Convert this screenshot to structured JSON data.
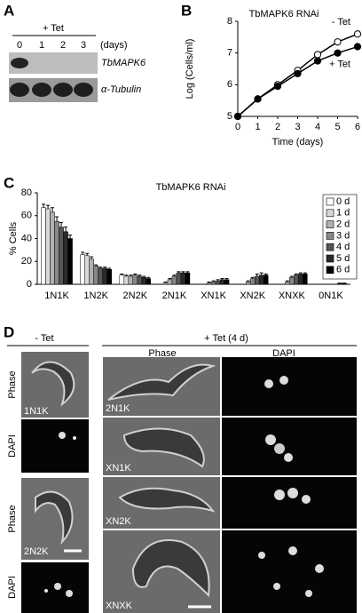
{
  "panel_labels": [
    "A",
    "B",
    "C",
    "D"
  ],
  "blot": {
    "treatment": "+ Tet",
    "lanes": [
      "0",
      "1",
      "2",
      "3"
    ],
    "unit": "(days)",
    "rows": [
      "TbMAPK6",
      "α-Tubulin"
    ]
  },
  "chart_data": [
    {
      "type": "line",
      "title": "TbMAPK6 RNAi",
      "x_label": "Time (days)",
      "y_label": "Log (Cells/ml)",
      "x": [
        0,
        1,
        2,
        3,
        4,
        5,
        6
      ],
      "xlim": [
        0,
        6
      ],
      "xticks": [
        0,
        1,
        2,
        3,
        4,
        5,
        6
      ],
      "ylim": [
        5,
        8
      ],
      "yticks": [
        5,
        6,
        7,
        8
      ],
      "series": [
        {
          "name": "- Tet",
          "color": "#ffffff",
          "values": [
            5,
            5.55,
            6.0,
            6.45,
            6.95,
            7.35,
            7.6
          ]
        },
        {
          "name": "+ Tet",
          "color": "#000000",
          "values": [
            5,
            5.55,
            5.95,
            6.35,
            6.75,
            7.0,
            7.2
          ]
        }
      ]
    },
    {
      "type": "bar",
      "title": "TbMAPK6 RNAi",
      "y_label": "% Cells",
      "categories": [
        "1N1K",
        "1N2K",
        "2N2K",
        "2N1K",
        "XN1K",
        "XN2K",
        "XNXK",
        "0N1K"
      ],
      "ylim": [
        0,
        80
      ],
      "yticks": [
        0,
        20,
        40,
        60,
        80
      ],
      "series": [
        {
          "name": "0 d",
          "color": "#ffffff",
          "values": [
            67,
            26,
            8,
            0,
            0,
            0,
            0,
            0
          ],
          "errors": [
            3,
            2,
            1,
            0,
            0,
            0,
            0,
            0
          ]
        },
        {
          "name": "1 d",
          "color": "#d9d9d9",
          "values": [
            66,
            25,
            7,
            1,
            0,
            0,
            0,
            0
          ],
          "errors": [
            3,
            2,
            1,
            1,
            0,
            0,
            0,
            0
          ]
        },
        {
          "name": "2 d",
          "color": "#b0b0b0",
          "values": [
            63,
            22,
            7,
            4,
            1,
            2,
            2,
            0
          ],
          "errors": [
            4,
            2,
            1,
            1,
            1,
            1,
            1,
            0
          ]
        },
        {
          "name": "3 d",
          "color": "#888888",
          "values": [
            55,
            16,
            8,
            7,
            2,
            5,
            6,
            0
          ],
          "errors": [
            4,
            1,
            1,
            1,
            1,
            1,
            1,
            0
          ]
        },
        {
          "name": "4 d",
          "color": "#555555",
          "values": [
            50,
            14,
            7,
            10,
            3,
            7,
            8,
            0
          ],
          "errors": [
            4,
            1,
            1,
            1,
            1,
            2,
            1,
            0
          ]
        },
        {
          "name": "5 d",
          "color": "#2a2a2a",
          "values": [
            46,
            14,
            6,
            10,
            4,
            8,
            9,
            1
          ],
          "errors": [
            4,
            1,
            1,
            1,
            1,
            2,
            1,
            0
          ]
        },
        {
          "name": "6 d",
          "color": "#000000",
          "values": [
            40,
            13,
            5,
            10,
            4,
            8,
            9,
            1
          ],
          "errors": [
            3,
            1,
            1,
            1,
            1,
            1,
            1,
            0
          ]
        }
      ]
    }
  ],
  "micrographs": {
    "groups": [
      "- Tet",
      "+ Tet (4 d)"
    ],
    "columns": [
      "Phase",
      "DAPI"
    ],
    "row_labels": [
      "Phase",
      "DAPI",
      "Phase",
      "DAPI"
    ],
    "image_labels": [
      "1N1K",
      "2N2K",
      "2N1K",
      "XN1K",
      "XN2K",
      "XNXK"
    ]
  }
}
